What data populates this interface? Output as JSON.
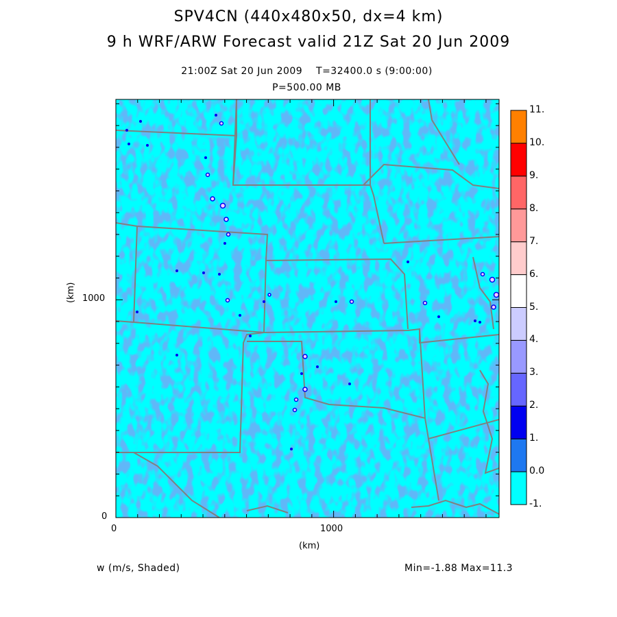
{
  "header": {
    "line1": "SPV4CN (440x480x50, dx=4 km)",
    "line2": "9 h WRF/ARW Forecast valid 21Z Sat 20 Jun 2009",
    "time_line": "21:00Z Sat 20 Jun 2009    T=32400.0 s (9:00:00)",
    "level_line": "P=500.00 MB"
  },
  "axes": {
    "x_label": "(km)",
    "y_label": "(km)",
    "x_ticks": [
      {
        "value": 0,
        "label": "0"
      },
      {
        "value": 1000,
        "label": "1000"
      }
    ],
    "y_ticks": [
      {
        "value": 0,
        "label": "0"
      },
      {
        "value": 1000,
        "label": "1000"
      }
    ],
    "x_range_km": [
      0,
      1760
    ],
    "y_range_km": [
      0,
      1920
    ]
  },
  "footer": {
    "field_label": "w (m/s, Shaded)",
    "min_max": "Min=-1.88 Max=11.3"
  },
  "colorbar": {
    "bins": [
      {
        "label": "-1.",
        "color": "#00ffff"
      },
      {
        "label": "0.0",
        "color": "#1e78f0"
      },
      {
        "label": "1.",
        "color": "#0000f0"
      },
      {
        "label": "2.",
        "color": "#6666ff"
      },
      {
        "label": "3.",
        "color": "#9999ff"
      },
      {
        "label": "4.",
        "color": "#ccccff"
      },
      {
        "label": "5.",
        "color": "#ffffff"
      },
      {
        "label": "6.",
        "color": "#ffcccc"
      },
      {
        "label": "7.",
        "color": "#ff9999"
      },
      {
        "label": "8.",
        "color": "#ff6666"
      },
      {
        "label": "9.",
        "color": "#ff0000"
      },
      {
        "label": "10.",
        "color": "#ff8000"
      }
    ],
    "top_label": "11."
  },
  "colors": {
    "background": "#00ffff",
    "updraft_weak": "#1e78f0",
    "state_borders": "#808080"
  }
}
